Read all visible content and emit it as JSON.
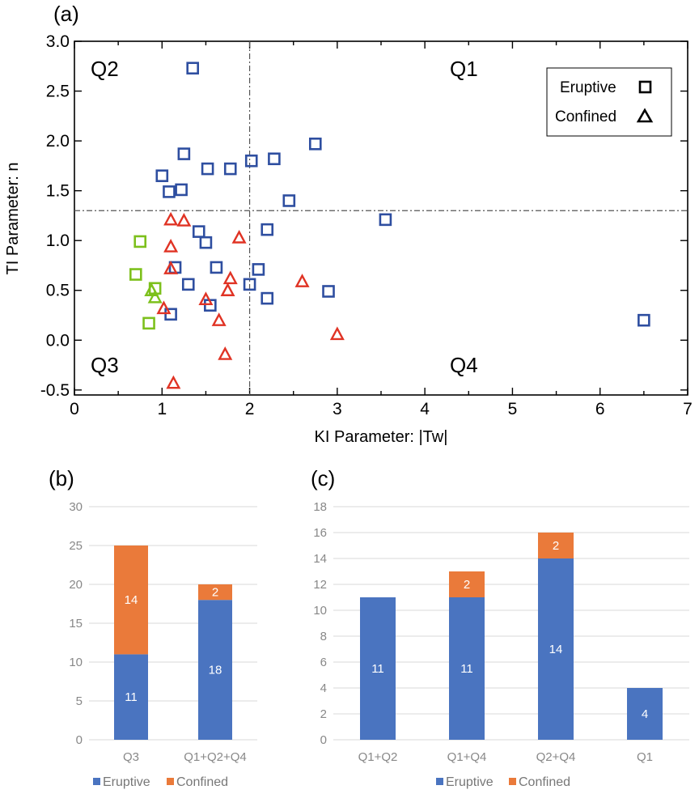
{
  "panels": {
    "a": "(a)",
    "b": "(b)",
    "c": "(c)"
  },
  "colors": {
    "blue_marker": "#2e4ea0",
    "green_marker": "#7dc01c",
    "red_marker": "#e03324",
    "bar_blue": "#4a74c0",
    "bar_orange": "#ea7a3a"
  },
  "chart_data": [
    {
      "type": "scatter",
      "xlabel": "KI Parameter: |Tw|",
      "ylabel": "TI Parameter: n",
      "xlim": [
        0,
        7
      ],
      "ylim": [
        -0.55,
        3.0
      ],
      "x_ticks": [
        "0",
        "1",
        "2",
        "3",
        "4",
        "5",
        "6",
        "7"
      ],
      "x_tick_values": [
        0,
        1,
        2,
        3,
        4,
        5,
        6,
        7
      ],
      "y_ticks": [
        "-0.5",
        "0.0",
        "0.5",
        "1.0",
        "1.5",
        "2.0",
        "2.5",
        "3.0"
      ],
      "y_tick_values": [
        -0.5,
        0,
        0.5,
        1.0,
        1.5,
        2.0,
        2.5,
        3.0
      ],
      "threshold_x": 2.0,
      "threshold_y": 1.3,
      "quadrant_labels": {
        "q1": "Q1",
        "q2": "Q2",
        "q3": "Q3",
        "q4": "Q4"
      },
      "legend": [
        {
          "label": "Eruptive",
          "marker": "square"
        },
        {
          "label": "Confined",
          "marker": "triangle"
        }
      ],
      "series": [
        {
          "name": "Eruptive (Q1/Q2/Q4)",
          "marker": "square",
          "color": "#2e4ea0",
          "points": [
            [
              1.35,
              2.73
            ],
            [
              1.25,
              1.87
            ],
            [
              1.0,
              1.65
            ],
            [
              1.08,
              1.49
            ],
            [
              1.22,
              1.51
            ],
            [
              1.52,
              1.72
            ],
            [
              1.78,
              1.72
            ],
            [
              2.02,
              1.8
            ],
            [
              2.28,
              1.82
            ],
            [
              2.75,
              1.97
            ],
            [
              2.45,
              1.4
            ],
            [
              3.55,
              1.21
            ],
            [
              6.5,
              0.2
            ],
            [
              1.42,
              1.09
            ],
            [
              1.5,
              0.98
            ],
            [
              2.2,
              1.11
            ],
            [
              1.15,
              0.73
            ],
            [
              1.62,
              0.73
            ],
            [
              2.1,
              0.71
            ],
            [
              1.3,
              0.56
            ],
            [
              2.0,
              0.56
            ],
            [
              2.9,
              0.49
            ],
            [
              2.2,
              0.42
            ],
            [
              1.55,
              0.35
            ],
            [
              1.1,
              0.26
            ]
          ]
        },
        {
          "name": "Eruptive (Q3)",
          "marker": "square",
          "color": "#7dc01c",
          "points": [
            [
              0.75,
              0.99
            ],
            [
              0.7,
              0.66
            ],
            [
              0.92,
              0.52
            ],
            [
              0.85,
              0.17
            ]
          ]
        },
        {
          "name": "Confined (Q3)",
          "marker": "triangle",
          "color": "#7dc01c",
          "points": [
            [
              0.88,
              0.5
            ],
            [
              0.92,
              0.43
            ]
          ]
        },
        {
          "name": "Confined",
          "marker": "triangle",
          "color": "#e03324",
          "points": [
            [
              1.1,
              1.21
            ],
            [
              1.25,
              1.2
            ],
            [
              1.1,
              0.94
            ],
            [
              1.1,
              0.72
            ],
            [
              1.88,
              1.03
            ],
            [
              1.78,
              0.62
            ],
            [
              1.75,
              0.5
            ],
            [
              1.5,
              0.41
            ],
            [
              1.02,
              0.32
            ],
            [
              1.65,
              0.2
            ],
            [
              2.6,
              0.59
            ],
            [
              3.0,
              0.06
            ],
            [
              1.72,
              -0.14
            ],
            [
              1.13,
              -0.43
            ]
          ]
        }
      ]
    },
    {
      "type": "bar",
      "stacked": true,
      "categories": [
        "Q3",
        "Q1+Q2+Q4"
      ],
      "ylim": [
        0,
        30
      ],
      "y_ticks": [
        "0",
        "5",
        "10",
        "15",
        "20",
        "25",
        "30"
      ],
      "y_tick_values": [
        0,
        5,
        10,
        15,
        20,
        25,
        30
      ],
      "series": [
        {
          "name": "Eruptive",
          "values": [
            11,
            18
          ],
          "color": "#4a74c0",
          "labels": [
            "11",
            "18"
          ]
        },
        {
          "name": "Confined",
          "values": [
            14,
            2
          ],
          "color": "#ea7a3a",
          "labels": [
            "14",
            "2"
          ]
        }
      ]
    },
    {
      "type": "bar",
      "stacked": true,
      "categories": [
        "Q1+Q2",
        "Q1+Q4",
        "Q2+Q4",
        "Q1"
      ],
      "ylim": [
        0,
        18
      ],
      "y_ticks": [
        "0",
        "2",
        "4",
        "6",
        "8",
        "10",
        "12",
        "14",
        "16",
        "18"
      ],
      "y_tick_values": [
        0,
        2,
        4,
        6,
        8,
        10,
        12,
        14,
        16,
        18
      ],
      "series": [
        {
          "name": "Eruptive",
          "values": [
            11,
            11,
            14,
            4
          ],
          "color": "#4a74c0",
          "labels": [
            "11",
            "11",
            "14",
            "4"
          ]
        },
        {
          "name": "Confined",
          "values": [
            0,
            2,
            2,
            0
          ],
          "color": "#ea7a3a",
          "labels": [
            "",
            "2",
            "2",
            ""
          ]
        }
      ]
    }
  ]
}
